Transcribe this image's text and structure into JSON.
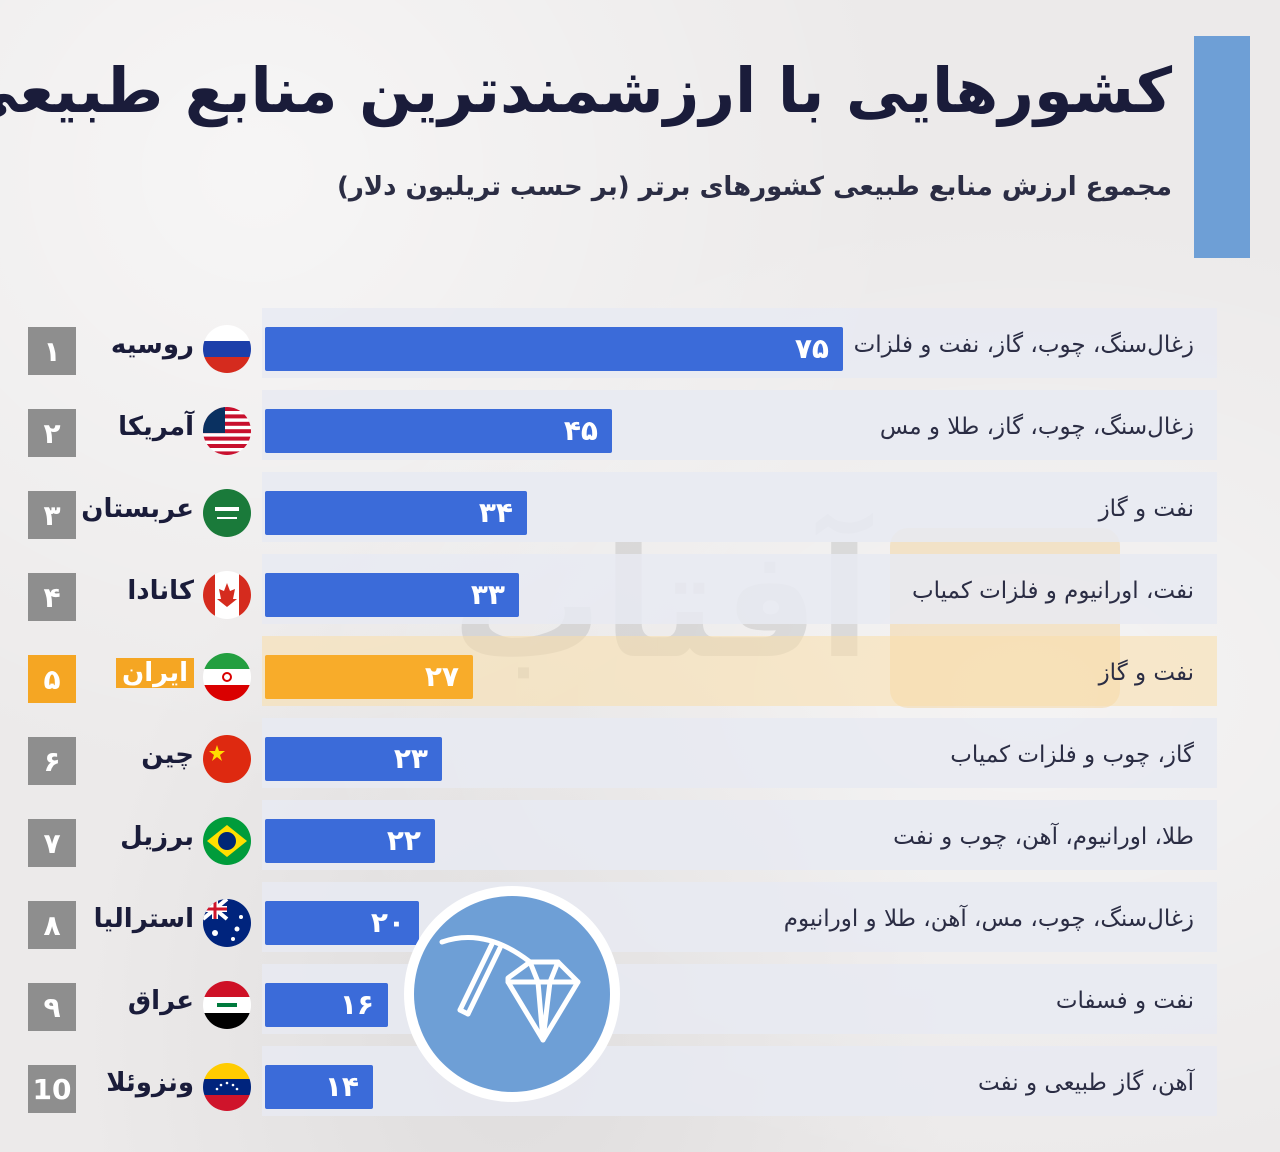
{
  "header": {
    "title": "کشورهایی با ارزشمندترین منابع طبیعی",
    "subtitle": "مجموع ارزش منابع طبیعی کشورهای برتر (بر حسب تریلیون دلار)"
  },
  "watermark": {
    "text": "آفتاب"
  },
  "colors": {
    "bar": "#3b6bd9",
    "highlight": "#f8ac2a",
    "rank": "#8e8e8e",
    "accent": "#6e9fd6"
  },
  "chart_data": {
    "type": "bar",
    "orientation": "horizontal",
    "title": "کشورهایی با ارزشمندترین منابع طبیعی",
    "subtitle": "مجموع ارزش منابع طبیعی کشورهای برتر (بر حسب تریلیون دلار)",
    "xlim": [
      0,
      75
    ],
    "highlight_index": 4,
    "rows": [
      {
        "rank": "۱",
        "country": "روسیه",
        "value": 75,
        "value_label": "۷۵",
        "resources": "زغال‌سنگ، چوب، گاز، نفت و فلزات",
        "flag": "russia-flag-icon"
      },
      {
        "rank": "۲",
        "country": "آمریکا",
        "value": 45,
        "value_label": "۴۵",
        "resources": "زغال‌سنگ، چوب، گاز، طلا و مس",
        "flag": "usa-flag-icon"
      },
      {
        "rank": "۳",
        "country": "عربستان",
        "value": 34,
        "value_label": "۳۴",
        "resources": "نفت و گاز",
        "flag": "saudi-flag-icon"
      },
      {
        "rank": "۴",
        "country": "کانادا",
        "value": 33,
        "value_label": "۳۳",
        "resources": "نفت، اورانیوم و فلزات کمیاب",
        "flag": "canada-flag-icon"
      },
      {
        "rank": "۵",
        "country": "ایران",
        "value": 27,
        "value_label": "۲۷",
        "resources": "نفت و گاز",
        "flag": "iran-flag-icon"
      },
      {
        "rank": "۶",
        "country": "چین",
        "value": 23,
        "value_label": "۲۳",
        "resources": "گاز، چوب و فلزات کمیاب",
        "flag": "china-flag-icon"
      },
      {
        "rank": "۷",
        "country": "برزیل",
        "value": 22,
        "value_label": "۲۲",
        "resources": "طلا، اورانیوم، آهن، چوب و نفت",
        "flag": "brazil-flag-icon"
      },
      {
        "rank": "۸",
        "country": "استرالیا",
        "value": 20,
        "value_label": "۲۰",
        "resources": "زغال‌سنگ، چوب، مس، آهن، طلا و اورانیوم",
        "flag": "australia-flag-icon"
      },
      {
        "rank": "۹",
        "country": "عراق",
        "value": 16,
        "value_label": "۱۶",
        "resources": "نفت و فسفات",
        "flag": "iraq-flag-icon"
      },
      {
        "rank": "10",
        "country": "ونزوئلا",
        "value": 14,
        "value_label": "۱۴",
        "resources": "آهن، گاز طبیعی و نفت",
        "flag": "venezuela-flag-icon"
      }
    ]
  }
}
